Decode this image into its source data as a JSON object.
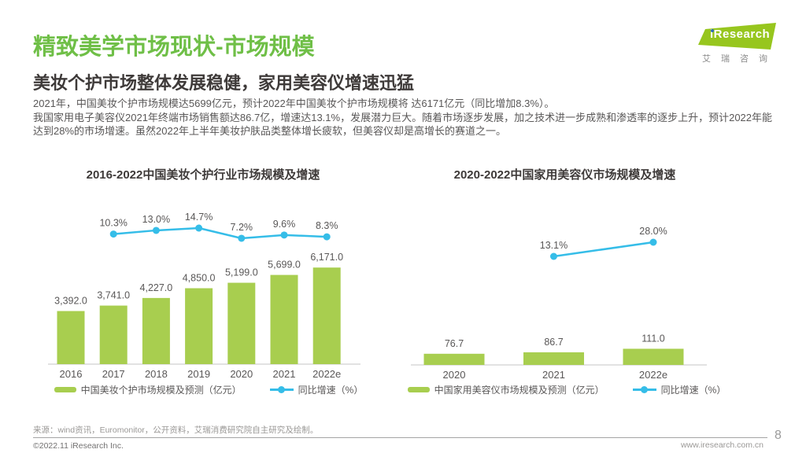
{
  "header": {
    "title": "精致美学市场现状-市场规模",
    "subtitle": "美妆个护市场整体发展稳健，家用美容仪增速迅猛",
    "paragraph_lines": [
      "2021年，中国美妆个护市场规模达5699亿元，预计2022年中国美妆个护市场规模将 达6171亿元（同比增加8.3%）。",
      "我国家用电子美容仪2021年终端市场销售额达86.7亿，增速达13.1%，发展潜力巨大。随着市场逐步发展，加之技术进一步成熟和渗透率的逐步上升，预计2022年能",
      "达到28%的市场增速。虽然2022年上半年美妆护肤品类整体增长疲软，但美容仪却是高增长的赛道之一。"
    ]
  },
  "logo": {
    "brand": "iResearch",
    "brand_cn": "艾瑞咨询"
  },
  "chart_data": [
    {
      "type": "bar",
      "title": "2016-2022中国美妆个护行业市场规模及增速",
      "categories": [
        "2016",
        "2017",
        "2018",
        "2019",
        "2020",
        "2021",
        "2022e"
      ],
      "series": [
        {
          "name": "中国美妆个护市场规模及预测（亿元）",
          "type": "bar",
          "values": [
            3392.0,
            3741.0,
            4227.0,
            4850.0,
            5199.0,
            5699.0,
            6171.0
          ],
          "labels": [
            "3,392.0",
            "3,741.0",
            "4,227.0",
            "4,850.0",
            "5,199.0",
            "5,699.0",
            "6,171.0"
          ]
        },
        {
          "name": "同比增速（%）",
          "type": "line",
          "values": [
            null,
            10.3,
            13.0,
            14.7,
            7.2,
            9.6,
            8.3
          ],
          "labels": [
            null,
            "10.3%",
            "13.0%",
            "14.7%",
            "7.2%",
            "9.6%",
            "8.3%"
          ]
        }
      ],
      "legend_position": "bottom",
      "grid": false,
      "bar_color": "#a8ce4f",
      "line_color": "#35bde8"
    },
    {
      "type": "bar",
      "title": "2020-2022中国家用美容仪市场规模及增速",
      "categories": [
        "2020",
        "2021",
        "2022e"
      ],
      "series": [
        {
          "name": "中国家用美容仪市场规模及预测（亿元）",
          "type": "bar",
          "values": [
            76.7,
            86.7,
            111.0
          ],
          "labels": [
            "76.7",
            "86.7",
            "111.0"
          ]
        },
        {
          "name": "同比增速（%）",
          "type": "line",
          "values": [
            null,
            13.1,
            28.0
          ],
          "labels": [
            null,
            "13.1%",
            "28.0%"
          ]
        }
      ],
      "legend_position": "bottom",
      "grid": false,
      "bar_color": "#a8ce4f",
      "line_color": "#35bde8"
    }
  ],
  "footer": {
    "source": "来源：wind资讯，Euromonitor，公开资料，艾瑞消费研究院自主研究及绘制。",
    "copyright": "©2022.11 iResearch Inc.",
    "website": "www.iresearch.com.cn",
    "page_number": "8"
  },
  "colors": {
    "title_green": "#6fbf47",
    "bar_green": "#a8ce4f",
    "line_blue": "#35bde8",
    "logo_green": "#97c61e",
    "text_gray": "#595757"
  }
}
